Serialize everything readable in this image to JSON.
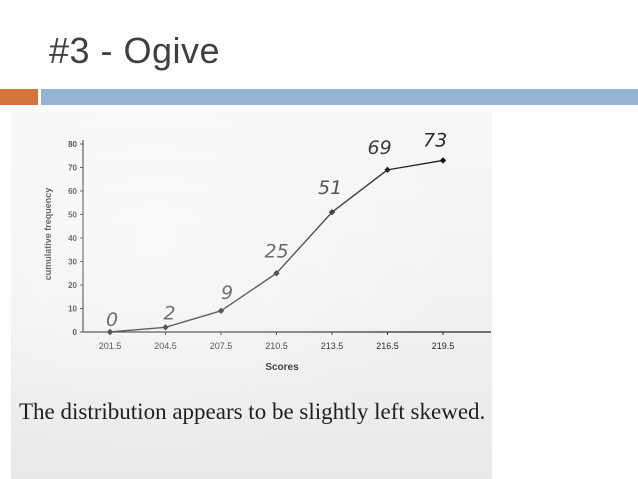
{
  "slide": {
    "title": "#3 - Ogive",
    "caption": "The distribution appears to be slightly left skewed."
  },
  "colors": {
    "accent_orange": "#d4763b",
    "accent_blue": "#93b4d3",
    "title_text": "#404040"
  },
  "chart_data": {
    "type": "line",
    "title": "",
    "xlabel": "Scores",
    "ylabel": "cumulative frequency",
    "x": [
      "201.5",
      "204.5",
      "207.5",
      "210.5",
      "213.5",
      "216.5",
      "219.5"
    ],
    "values": [
      0,
      2,
      9,
      25,
      51,
      69,
      73
    ],
    "annotations": [
      "0",
      "2",
      "9",
      "25",
      "51",
      "69",
      "73"
    ],
    "yticks": [
      "0",
      "10",
      "20",
      "30",
      "40",
      "50",
      "60",
      "70",
      "80"
    ],
    "ylim": [
      0,
      80
    ],
    "grid": false,
    "legend": "none"
  }
}
